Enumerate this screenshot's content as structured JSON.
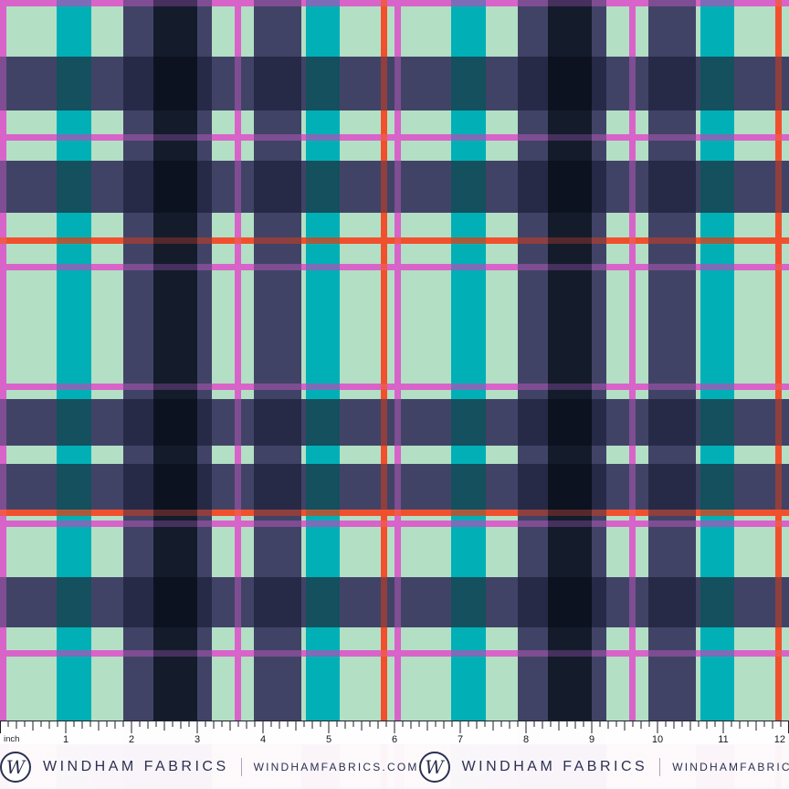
{
  "plaid": {
    "colors": {
      "P_P": "#d863c9",
      "P_M": "#d863c9",
      "P_T": "#7d6cb8",
      "P_N": "#7e4d92",
      "P_B": "#45305e",
      "P_O": "#ee5a4e",
      "M_P": "#d863c9",
      "M_M": "#b3dfc5",
      "M_T": "#00b0b6",
      "M_N": "#414366",
      "M_B": "#141c2b",
      "M_O": "#f1502e",
      "N_P": "#7e4d92",
      "N_M": "#414366",
      "N_T": "#14505e",
      "N_N": "#262a47",
      "N_B": "#0d1220",
      "N_O": "#8f3f3e",
      "O_P": "#ee5a4e",
      "O_M": "#f1502e",
      "O_T": "#a85b3c",
      "O_N": "#8f3f3e",
      "O_B": "#55282c",
      "O_O": "#f1502e"
    },
    "column_repeat": [
      [
        7,
        "P"
      ],
      [
        55,
        "M"
      ],
      [
        38,
        "T"
      ],
      [
        35,
        "M"
      ],
      [
        33,
        "N"
      ],
      [
        48,
        "B"
      ],
      [
        16,
        "N"
      ],
      [
        25,
        "M"
      ],
      [
        7,
        "P"
      ],
      [
        14,
        "M"
      ],
      [
        52,
        "N"
      ],
      [
        5,
        "M"
      ],
      [
        37,
        "T"
      ],
      [
        45,
        "M"
      ],
      [
        7,
        "O"
      ],
      [
        8,
        "M"
      ]
    ],
    "column_repeats": 2,
    "rows": [
      [
        7,
        "P"
      ],
      [
        55,
        "M"
      ],
      [
        59,
        "N"
      ],
      [
        26,
        "M"
      ],
      [
        7,
        "P"
      ],
      [
        22,
        "M"
      ],
      [
        57,
        "N"
      ],
      [
        27,
        "M"
      ],
      [
        7,
        "O"
      ],
      [
        22,
        "M"
      ],
      [
        7,
        "P"
      ],
      [
        124,
        "M"
      ],
      [
        7,
        "P"
      ],
      [
        10,
        "M"
      ],
      [
        51,
        "N"
      ],
      [
        20,
        "M"
      ],
      [
        50,
        "N"
      ],
      [
        7,
        "O"
      ],
      [
        5,
        "M"
      ],
      [
        7,
        "P"
      ],
      [
        55,
        "M"
      ],
      [
        55,
        "N"
      ],
      [
        25,
        "M"
      ],
      [
        7,
        "P"
      ],
      [
        70,
        "M"
      ]
    ]
  },
  "ruler": {
    "unit_label": "inch",
    "numbers": [
      "1",
      "2",
      "3",
      "4",
      "5",
      "6",
      "7",
      "8",
      "9",
      "10",
      "11",
      "12"
    ]
  },
  "brand": {
    "monogram": "W",
    "name": "WINDHAM FABRICS",
    "url": "WINDHAMFABRICS.COM"
  }
}
